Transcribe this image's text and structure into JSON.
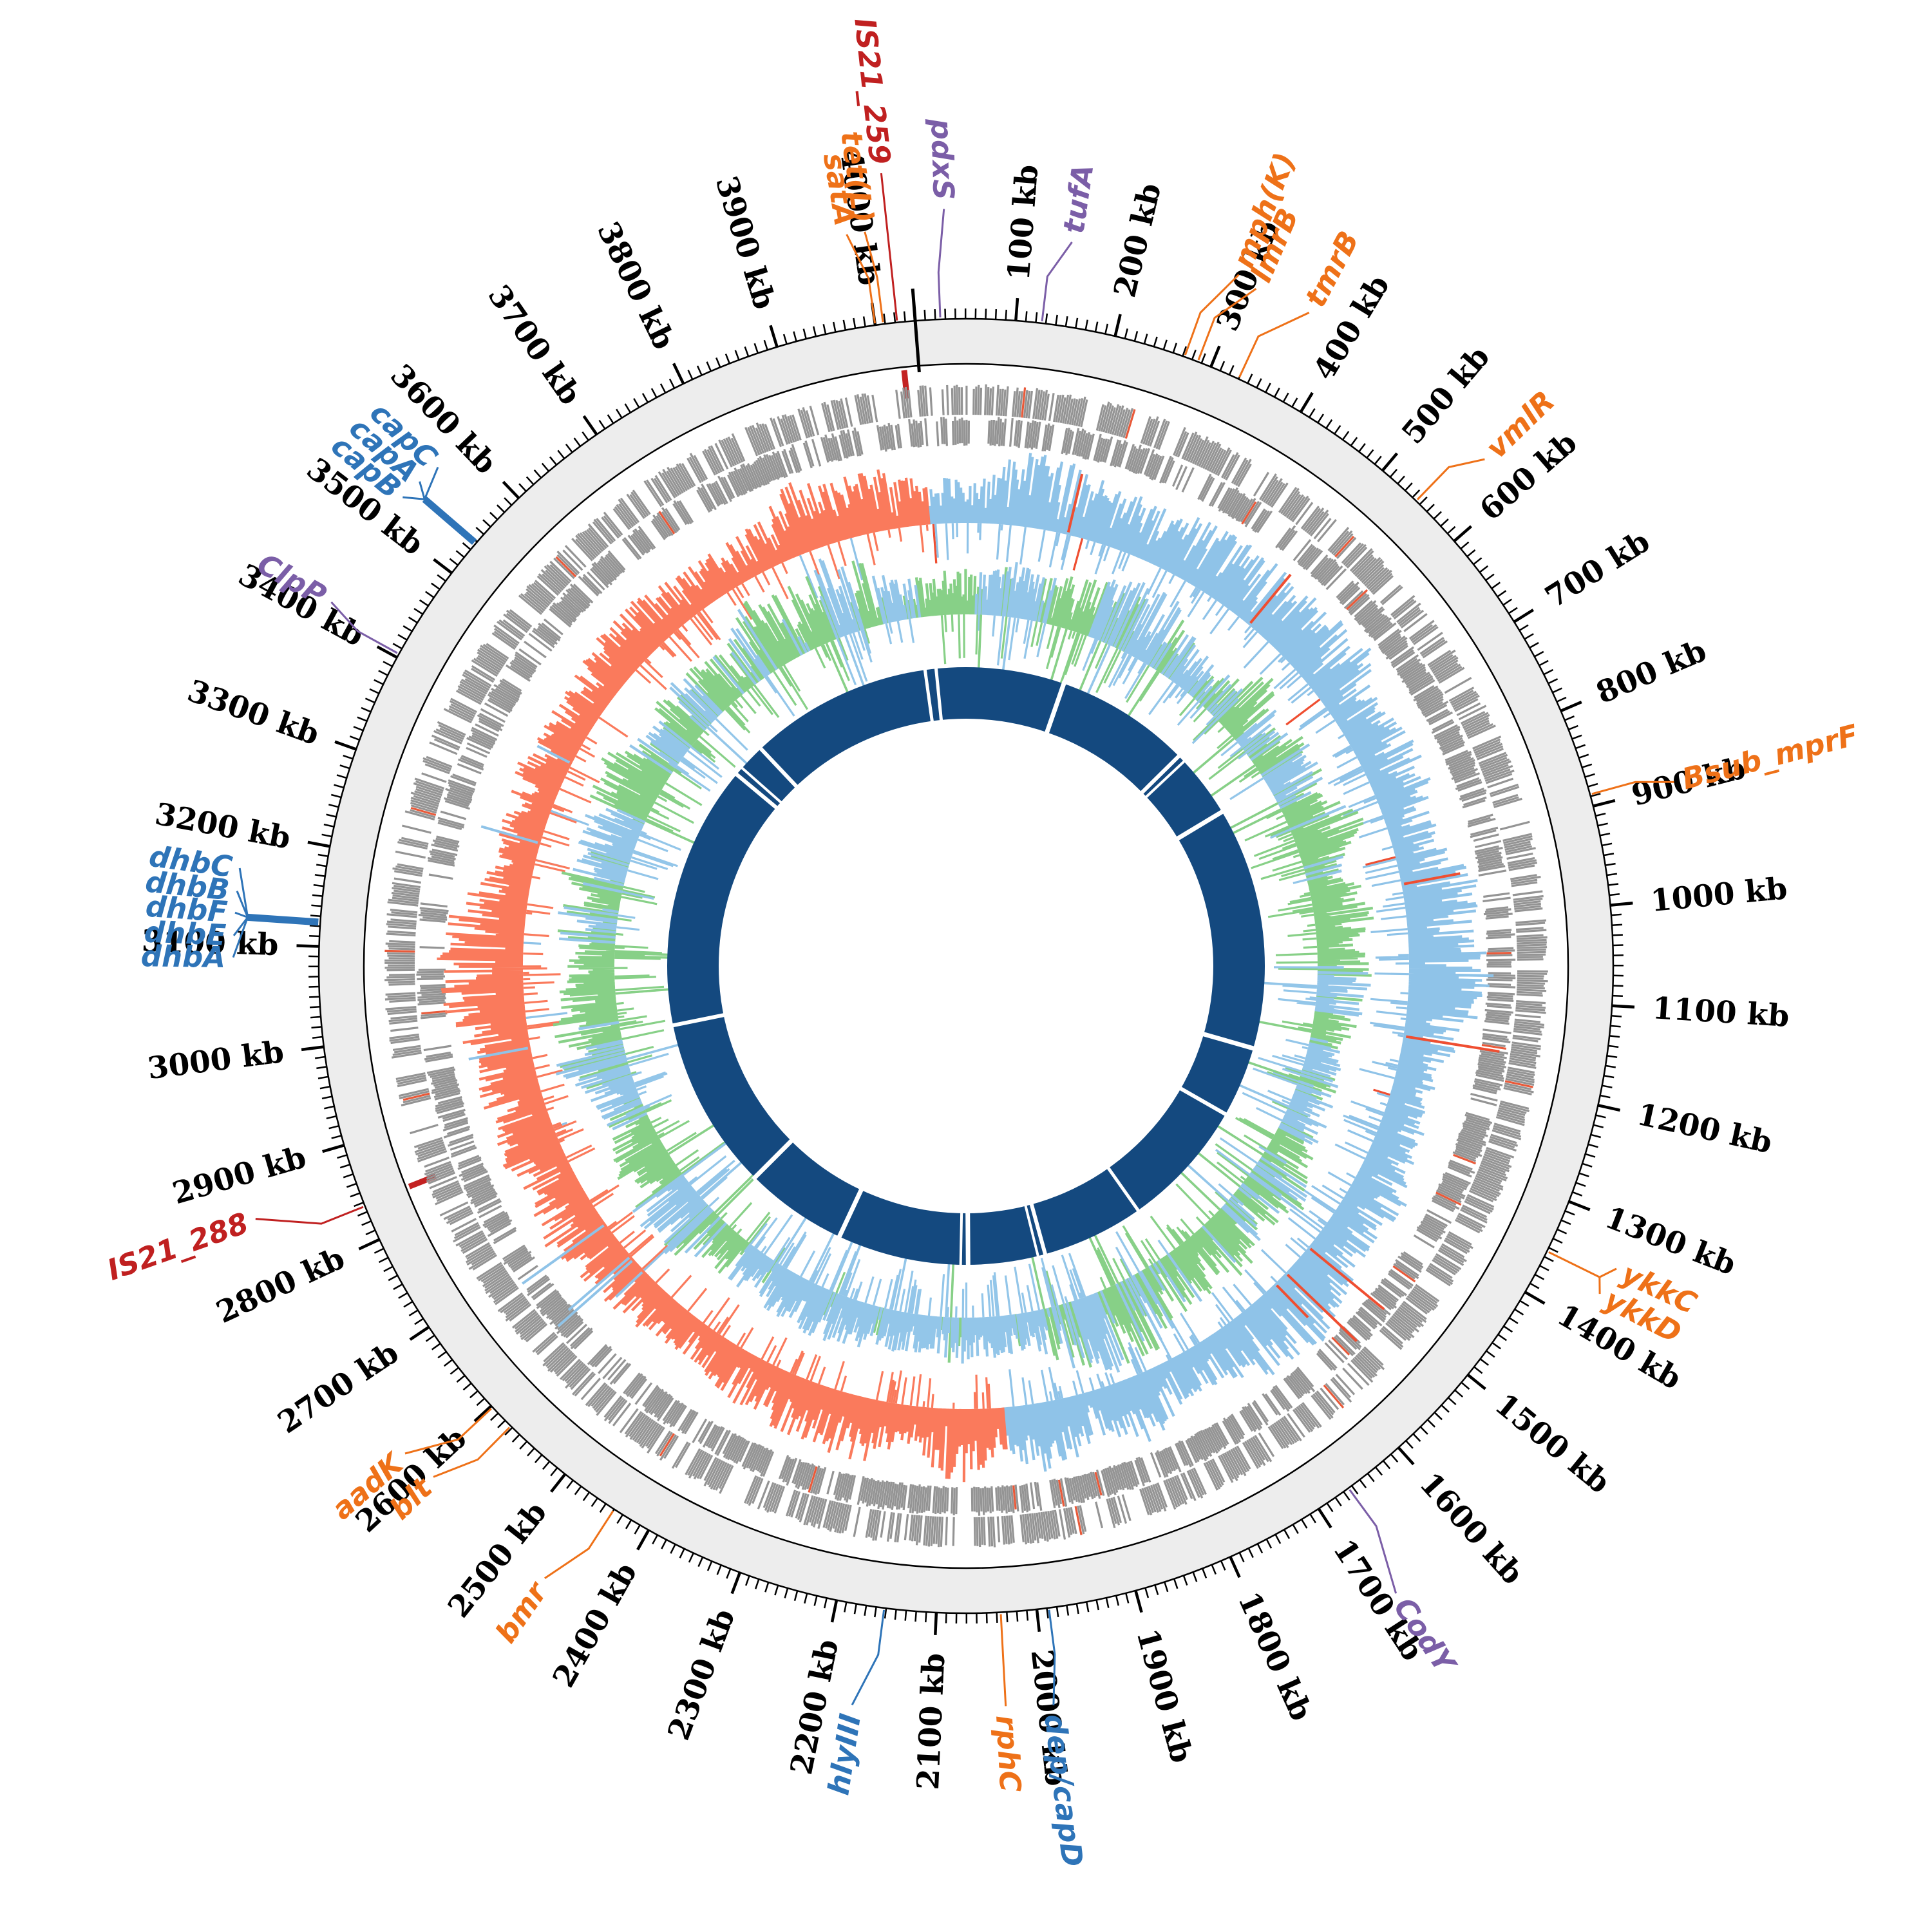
{
  "figure": {
    "type": "circular-genome-map",
    "description": "Circos-style circular bacterial genome plot with kb scale ring, gene annotation labels, two-row gene track, GC-skew style track, GC-content style track and inner alignment ring",
    "background": "#ffffff"
  },
  "scale": {
    "unit": "kb",
    "genome_length_kb": 4040,
    "major_tick_kb": 100,
    "minor_tick_kb": 10,
    "start_angle_offset_deg": -4.5,
    "tick_labels": [
      "100 kb",
      "200 kb",
      "300 kb",
      "400 kb",
      "500 kb",
      "600 kb",
      "700 kb",
      "800 kb",
      "900 kb",
      "1000 kb",
      "1100 kb",
      "1200 kb",
      "1300 kb",
      "1400 kb",
      "1500 kb",
      "1600 kb",
      "1700 kb",
      "1800 kb",
      "1900 kb",
      "2000 kb",
      "2100 kb",
      "2200 kb",
      "2300 kb",
      "2400 kb",
      "2500 kb",
      "2600 kb",
      "2700 kb",
      "2800 kb",
      "2900 kb",
      "3000 kb",
      "3100 kb",
      "3200 kb",
      "3300 kb",
      "3400 kb",
      "3500 kb",
      "3600 kb",
      "3700 kb",
      "3800 kb",
      "3900 kb",
      "4000 kb"
    ]
  },
  "palette": {
    "band_fill": "#ededed",
    "band_border": "#000000",
    "tick": "#000000",
    "gray_gene": "#949494",
    "gene_mark_red": "#e85a3a",
    "skew_blue": "#8fc3e8",
    "skew_salmon": "#fa7a5c",
    "skew_red_spike": "#ef4e31",
    "gc_green": "#87d087",
    "gc_blue": "#93c6e9",
    "navy_ring": "#14497f",
    "label_orange": "#ee7118",
    "label_darkred": "#c02020",
    "label_purple": "#7b5ea7",
    "label_blue": "#2e74b8",
    "is_marker_red": "#c32222",
    "start_line": "#000000"
  },
  "tracks": {
    "scale_band": {
      "r_in": 935,
      "r_out": 1005
    },
    "gene_rows": {
      "outer": [
        856,
        904
      ],
      "inner": [
        808,
        854
      ]
    },
    "skew": {
      "base_r": 688,
      "out_max": 125,
      "in_max": 60,
      "blue_segment_kb": [
        0,
        2016
      ],
      "salmon_segment_kb": [
        2016,
        4040
      ]
    },
    "gc": {
      "base_r": 546,
      "out_max": 125,
      "in_max": 145
    },
    "alignment_ring": {
      "r_mid": 424,
      "width": 80
    }
  },
  "alignment_gaps_kb": [
    265,
    560,
    576,
    712,
    1240,
    1394,
    1676,
    1898,
    1914,
    2066,
    2082,
    2352,
    2575,
    2952,
    3528,
    3546,
    3604,
    4002,
    4026
  ],
  "alignment_gap_widths": [
    7,
    6,
    4,
    7,
    7,
    6,
    5,
    6,
    4,
    7,
    4,
    7,
    7,
    6,
    6,
    4,
    6,
    5,
    5
  ],
  "is_markers_kb": [
    4024,
    2838
  ],
  "gene_labels": [
    {
      "name": "satA",
      "kb": 4000,
      "color": "label_orange",
      "da": -1.2,
      "r": 1165
    },
    {
      "name": "tet(L)",
      "kb": 4008,
      "color": "label_orange",
      "da": -0.5,
      "r": 1165
    },
    {
      "name": "IS21_259",
      "kb": 4022,
      "color": "label_darkred",
      "da": 0.0,
      "r": 1252
    },
    {
      "name": "pdxS",
      "kb": 25,
      "color": "label_purple",
      "da": 0.6,
      "r": 1190
    },
    {
      "name": "tufA",
      "kb": 126,
      "color": "label_purple",
      "da": 1.6,
      "r": 1150
    },
    {
      "name": "mph(K)",
      "kb": 272,
      "color": "label_orange",
      "da": 1.8,
      "r": 1168
    },
    {
      "name": "lmrB",
      "kb": 286,
      "color": "label_orange",
      "da": 2.2,
      "r": 1158
    },
    {
      "name": "tmrB",
      "kb": 330,
      "color": "label_orange",
      "da": 2.8,
      "r": 1160
    },
    {
      "name": "vmlR",
      "kb": 545,
      "color": "label_orange",
      "da": 1.6,
      "r": 1140
    },
    {
      "name": "Bsub_mprF",
      "kb": 888,
      "color": "label_orange",
      "da": 0.8,
      "r": 1150
    },
    {
      "name": "CodY",
      "kb": 1664,
      "color": "label_purple",
      "da": 1.8,
      "r": 1195
    },
    {
      "name": "dep/capD",
      "kb": 1988,
      "color": "label_blue",
      "da": 0.6,
      "r": 1170
    },
    {
      "name": "rphC",
      "kb": 2036,
      "color": "label_orange",
      "da": 0.0,
      "r": 1165
    },
    {
      "name": "hlyIII",
      "kb": 2152,
      "color": "label_blue",
      "da": 1.5,
      "r": 1175
    },
    {
      "name": "bmr",
      "kb": 2440,
      "color": "label_orange",
      "da": 1.6,
      "r": 1168
    },
    {
      "name": "blt",
      "kb": 2572,
      "color": "label_orange",
      "da": 1.5,
      "r": 1160
    },
    {
      "name": "aadK",
      "kb": 2598,
      "color": "label_orange",
      "da": 2.0,
      "r": 1168
    },
    {
      "name": "IS21_288",
      "kb": 2836,
      "color": "label_darkred",
      "da": 2.2,
      "r": 1185
    },
    {
      "name": "ClpP",
      "kb": 3404,
      "color": "label_purple",
      "da": 1.0,
      "r": 1150
    }
  ],
  "label_clusters": [
    {
      "name": "ykk-cluster",
      "stem_kb": 1354,
      "color": "label_orange",
      "stem_width": 3,
      "tip_r": 1096,
      "members": [
        {
          "name": "ykkC",
          "da": -1.2,
          "r": 1126
        },
        {
          "name": "ykkD",
          "da": 1.2,
          "r": 1120
        }
      ]
    },
    {
      "name": "dhb-cluster",
      "stem_kb": 3124,
      "color": "label_blue",
      "stem_width": 11,
      "tip_r": 1118,
      "members": [
        {
          "name": "dhbC",
          "da": 3.8,
          "r": 1150
        },
        {
          "name": "dhbB",
          "da": 2.0,
          "r": 1150
        },
        {
          "name": "dhbF",
          "da": 0.3,
          "r": 1150
        },
        {
          "name": "dhbE",
          "da": -1.5,
          "r": 1150
        },
        {
          "name": "dhbA",
          "da": -3.2,
          "r": 1150
        }
      ]
    },
    {
      "name": "cap-cluster",
      "stem_kb": 3538,
      "color": "label_blue",
      "stem_width": 11,
      "tip_r": 1110,
      "members": [
        {
          "name": "capC",
          "da": 2.6,
          "r": 1140
        },
        {
          "name": "capA",
          "da": 0.8,
          "r": 1146
        },
        {
          "name": "capB",
          "da": -1.0,
          "r": 1150
        }
      ]
    }
  ],
  "render_seed": 1337
}
